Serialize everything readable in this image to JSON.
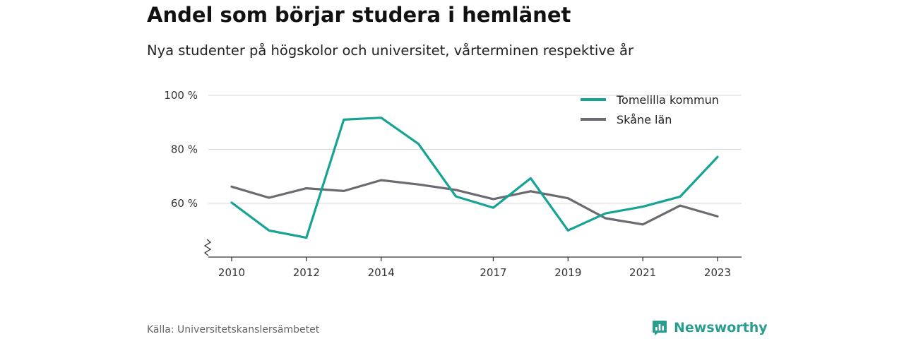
{
  "header": {
    "title": "Andel som börjar studera i hemlänet",
    "subtitle": "Nya studenter på högskolor och universitet, vårterminen respektive år"
  },
  "footer": {
    "source": "Källa: Universitetskanslersämbetet",
    "brand": "Newsworthy",
    "brand_icon": "newsworthy-logo-icon"
  },
  "colors": {
    "tomelilla": "#16a394",
    "skane": "#6b6a70",
    "grid": "#d9d9d9",
    "axis": "#333333",
    "brand": "#2a9d8f"
  },
  "chart_data": {
    "type": "line",
    "x": [
      2010,
      2011,
      2012,
      2013,
      2014,
      2015,
      2016,
      2017,
      2018,
      2019,
      2020,
      2021,
      2022,
      2023
    ],
    "x_tick_labels": [
      "2010",
      "2012",
      "2014",
      "2017",
      "2019",
      "2021",
      "2023"
    ],
    "x_tick_values": [
      2010,
      2012,
      2014,
      2017,
      2019,
      2021,
      2023
    ],
    "y_tick_labels": [
      "100 %",
      "80 %",
      "60 %"
    ],
    "y_tick_values": [
      100,
      80,
      60
    ],
    "ylim": [
      40,
      100
    ],
    "xlim": [
      2009.3,
      2023.6
    ],
    "axis_break": true,
    "grid": true,
    "legend_position": "top-right",
    "series": [
      {
        "name": "Tomelilla kommun",
        "color": "#16a394",
        "values": [
          60.3,
          50.0,
          47.3,
          91.0,
          91.7,
          82.0,
          62.6,
          58.4,
          69.3,
          50.0,
          56.3,
          58.8,
          62.5,
          77.2
        ]
      },
      {
        "name": "Skåne län",
        "color": "#6b6a70",
        "values": [
          66.2,
          62.1,
          65.6,
          64.6,
          68.6,
          67.0,
          65.0,
          61.6,
          64.5,
          61.9,
          54.5,
          52.2,
          59.2,
          55.2
        ]
      }
    ]
  }
}
